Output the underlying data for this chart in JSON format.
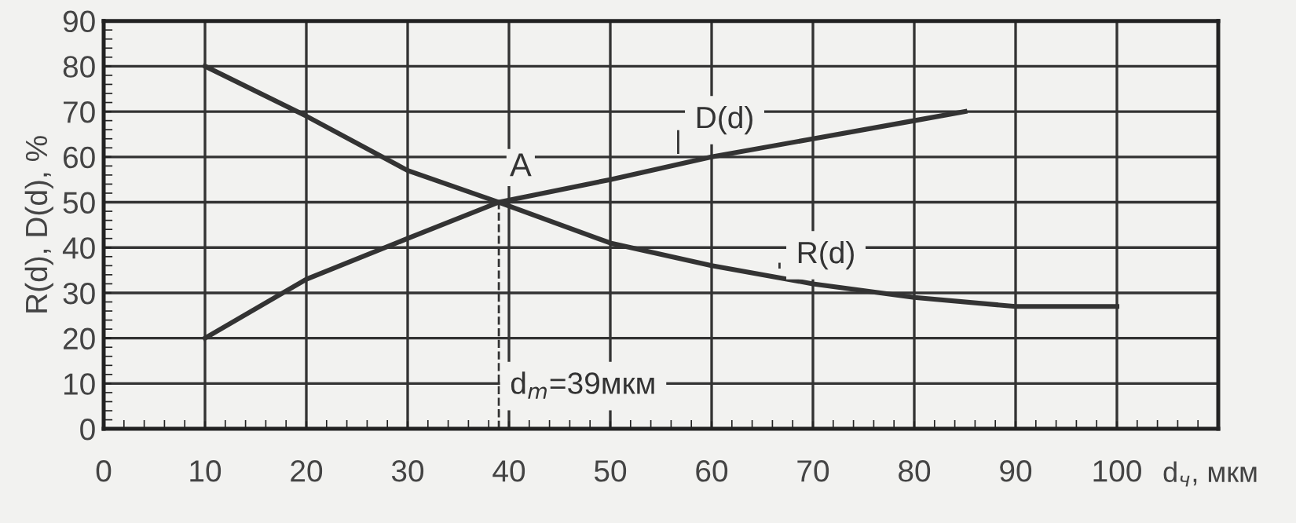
{
  "chart_data": {
    "type": "line",
    "xlabel": "d$_{ч}$, мкм",
    "ylabel": "R(d), D(d), %",
    "xlim": [
      0,
      110
    ],
    "ylim": [
      0,
      90
    ],
    "xticks": [
      0,
      10,
      20,
      30,
      40,
      50,
      60,
      70,
      80,
      90,
      100,
      {
        "value": 110,
        "label": null
      }
    ],
    "yticks": [
      0,
      10,
      20,
      30,
      40,
      50,
      60,
      70,
      80,
      90
    ],
    "grid": true,
    "marker": "none",
    "line_style": "solid",
    "series": [
      {
        "name": "R(d)",
        "color": "#333333",
        "x": [
          10,
          20,
          30,
          39,
          50,
          60,
          70,
          80,
          90,
          100
        ],
        "values": [
          80,
          69,
          57,
          50,
          41,
          36,
          32,
          29,
          27,
          27
        ]
      },
      {
        "name": "D(d)",
        "color": "#333333",
        "x": [
          10,
          20,
          30,
          39,
          50,
          60,
          70,
          80,
          85
        ],
        "values": [
          20,
          33,
          42,
          50,
          55,
          60,
          64,
          68,
          70
        ]
      }
    ],
    "annotations": [
      {
        "text": "A",
        "x": 39,
        "y": 50
      }
    ],
    "ref_lines": [
      {
        "axis": "x",
        "value": 39,
        "label": "d$_{m}$=39мкм",
        "line_style": "dashed",
        "color": "#333333"
      },
      {
        "axis": "y",
        "value": 50,
        "label": null,
        "line_style": "dashed",
        "color": "#333333"
      }
    ]
  }
}
